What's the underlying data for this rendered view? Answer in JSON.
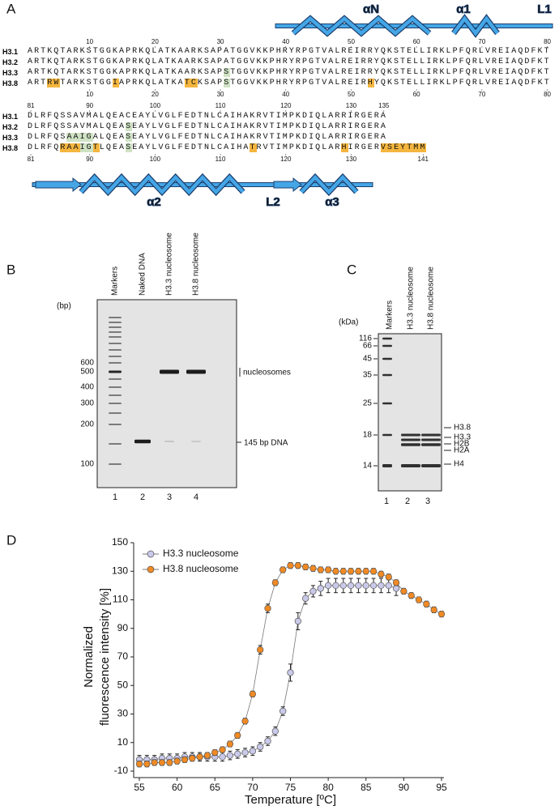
{
  "panel_a": {
    "label": "A",
    "structure_top": [
      "αN",
      "α1",
      "L1"
    ],
    "structure_bottom": [
      "α2",
      "L2",
      "α3"
    ],
    "blocks": [
      {
        "top_numbers": [
          10,
          20,
          30,
          40,
          50,
          60,
          70,
          80
        ],
        "rows": [
          {
            "name": "H3.1",
            "segments": [
              {
                "text": "ARTKQTARKSTGGKAPRKQLATKAARKSAPATGGVKKPHRYRPGTVALREIRRYQKSTELLIRKLPFQRLVREIAQDFKT"
              }
            ]
          },
          {
            "name": "H3.2",
            "segments": [
              {
                "text": "ARTKQTARKSTGGKAPRKQLATKAARKSAPATGGVKKPHRYRPGTVALREIRRYQKSTELLIRKLPFQRLVREIAQDFKT"
              }
            ]
          },
          {
            "name": "H3.3",
            "segments": [
              {
                "text": "ARTKQTARKSTGGKAPRKQLATKAARKSAP"
              },
              {
                "text": "S",
                "color": "#cfe3c4"
              },
              {
                "text": "TGGVKKPHRYRPGTVALREIRRYQKSTELLIRKLPFQRLVREIAQDFKT"
              }
            ]
          },
          {
            "name": "H3.8",
            "segments": [
              {
                "text": "ART"
              },
              {
                "text": "RW",
                "color": "#f4b63f"
              },
              {
                "text": "TARKSTGG"
              },
              {
                "text": "I",
                "color": "#f4b63f"
              },
              {
                "text": "APRKQLATKA"
              },
              {
                "text": "TC",
                "color": "#f4b63f"
              },
              {
                "text": "KSAP"
              },
              {
                "text": "S",
                "color": "#cfe3c4"
              },
              {
                "text": "TGGVKKPHRYRPGTVALREIR"
              },
              {
                "text": "H",
                "color": "#f4b63f"
              },
              {
                "text": "YQKSTELLIRKLPFQRLVREIAQDFKT"
              }
            ]
          }
        ],
        "bottom_numbers": [
          10,
          20,
          30,
          40,
          50,
          60,
          70,
          80
        ]
      },
      {
        "top_numbers": [
          81,
          90,
          100,
          110,
          120,
          130,
          135
        ],
        "rows": [
          {
            "name": "H3.1",
            "segments": [
              {
                "text": "DLRFQSSAVMALQEACEAYLVGLFEDTNLCAIHAKRVTIMPKDIQLARRIRGERA"
              }
            ]
          },
          {
            "name": "H3.2",
            "segments": [
              {
                "text": "DLRFQSSAVMALQEA"
              },
              {
                "text": "S",
                "color": "#cfe3c4"
              },
              {
                "text": "EAYLVGLFEDTNLCAIHAKRVTIMPKDIQLARRIRGERA"
              }
            ]
          },
          {
            "name": "H3.3",
            "segments": [
              {
                "text": "DLRFQS"
              },
              {
                "text": "AAIG",
                "color": "#cfe3c4"
              },
              {
                "text": "ALQEA"
              },
              {
                "text": "S",
                "color": "#cfe3c4"
              },
              {
                "text": "EAYLVGLFEDTNLCAIHAKRVTIMPKDIQLARRIRGERA"
              }
            ]
          },
          {
            "name": "H3.8",
            "segments": [
              {
                "text": "DLRFQ"
              },
              {
                "text": "RAA",
                "color": "#f4b63f"
              },
              {
                "text": "IG",
                "color": "#cfe3c4"
              },
              {
                "text": "T",
                "color": "#f4b63f"
              },
              {
                "text": "LQEA"
              },
              {
                "text": "S",
                "color": "#cfe3c4"
              },
              {
                "text": "EAYLVGLFEDTNLCAIHA"
              },
              {
                "text": "T",
                "color": "#f4b63f"
              },
              {
                "text": "RVTIMPKDIQLAR"
              },
              {
                "text": "H",
                "color": "#f4b63f"
              },
              {
                "text": "IRGER"
              },
              {
                "text": "VSEYTMM",
                "color": "#f4b63f"
              }
            ]
          }
        ],
        "bottom_numbers": [
          81,
          90,
          100,
          110,
          120,
          130,
          141
        ]
      }
    ]
  },
  "panel_b": {
    "label": "B",
    "lanes": [
      "Markers",
      "Naked DNA",
      "H3.3 nucleosome",
      "H3.8 nucleosome"
    ],
    "unit": "(bp)",
    "sizes": [
      600,
      500,
      400,
      300,
      200,
      100
    ],
    "annotations": [
      "nucleosomes",
      "145 bp DNA"
    ],
    "lane_numbers": [
      1,
      2,
      3,
      4
    ]
  },
  "panel_c": {
    "label": "C",
    "lanes": [
      "Markers",
      "H3.3 nucleosome",
      "H3.8 nucleosome"
    ],
    "unit": "(kDa)",
    "sizes": [
      116,
      66,
      45,
      35,
      25,
      18,
      14
    ],
    "bands": [
      "H3.8",
      "H3.3",
      "H2B",
      "H2A",
      "H4"
    ],
    "lane_numbers": [
      1,
      2,
      3
    ]
  },
  "chart_data": {
    "type": "line",
    "panel_label": "D",
    "xlabel": "Temperature  [ºC]",
    "ylabel": [
      "Normalized",
      "fluorescence intensity [%]"
    ],
    "x": [
      55,
      56,
      57,
      58,
      59,
      60,
      61,
      62,
      63,
      64,
      65,
      66,
      67,
      68,
      69,
      70,
      71,
      72,
      73,
      74,
      75,
      76,
      77,
      78,
      79,
      80,
      81,
      82,
      83,
      84,
      85,
      86,
      87,
      88,
      89,
      90,
      91,
      92,
      93,
      94,
      95
    ],
    "series": [
      {
        "name": "H3.3 nucleosome",
        "color": "#c9c9ea",
        "values": [
          -2,
          -2,
          -2,
          -1,
          -1,
          -1,
          0,
          0,
          0,
          0,
          0,
          0,
          1,
          2,
          3,
          4,
          7,
          11,
          18,
          32,
          59,
          95,
          111,
          116,
          118,
          120,
          120,
          120,
          120,
          120,
          120,
          120,
          120,
          120,
          118,
          null,
          null,
          null,
          null,
          null,
          null
        ],
        "errors": [
          3,
          3,
          3,
          3,
          3,
          3,
          3,
          3,
          3,
          3,
          3,
          3,
          3,
          3,
          3,
          3,
          3,
          3,
          3,
          3,
          6,
          6,
          4,
          4,
          5,
          5,
          5,
          5,
          5,
          5,
          5,
          5,
          5,
          5,
          5,
          null,
          null,
          null,
          null,
          null,
          null
        ]
      },
      {
        "name": "H3.8 nucleosome",
        "color": "#f08a24",
        "values": [
          -5,
          -5,
          -4,
          -4,
          -4,
          -3,
          -2,
          -1,
          0,
          1,
          3,
          5,
          9,
          15,
          25,
          44,
          75,
          104,
          122,
          131,
          134,
          134,
          133,
          132,
          131,
          131,
          130,
          130,
          130,
          130,
          130,
          130,
          128,
          126,
          122,
          116,
          113,
          110,
          107,
          103,
          100
        ],
        "errors": [
          2,
          2,
          2,
          2,
          2,
          2,
          2,
          2,
          2,
          2,
          2,
          2,
          2,
          2,
          2,
          2,
          3,
          3,
          2,
          2,
          2,
          2,
          2,
          2,
          2,
          2,
          2,
          2,
          2,
          2,
          2,
          2,
          2,
          2,
          2,
          2,
          2,
          2,
          2,
          2,
          2
        ]
      }
    ],
    "xlim": [
      55,
      95
    ],
    "xticks": [
      55,
      60,
      65,
      70,
      75,
      80,
      85,
      90,
      95
    ],
    "ylim": [
      -10,
      150
    ],
    "yticks": [
      -10,
      10,
      30,
      50,
      70,
      90,
      110,
      130,
      150
    ],
    "legend": "top-left"
  }
}
